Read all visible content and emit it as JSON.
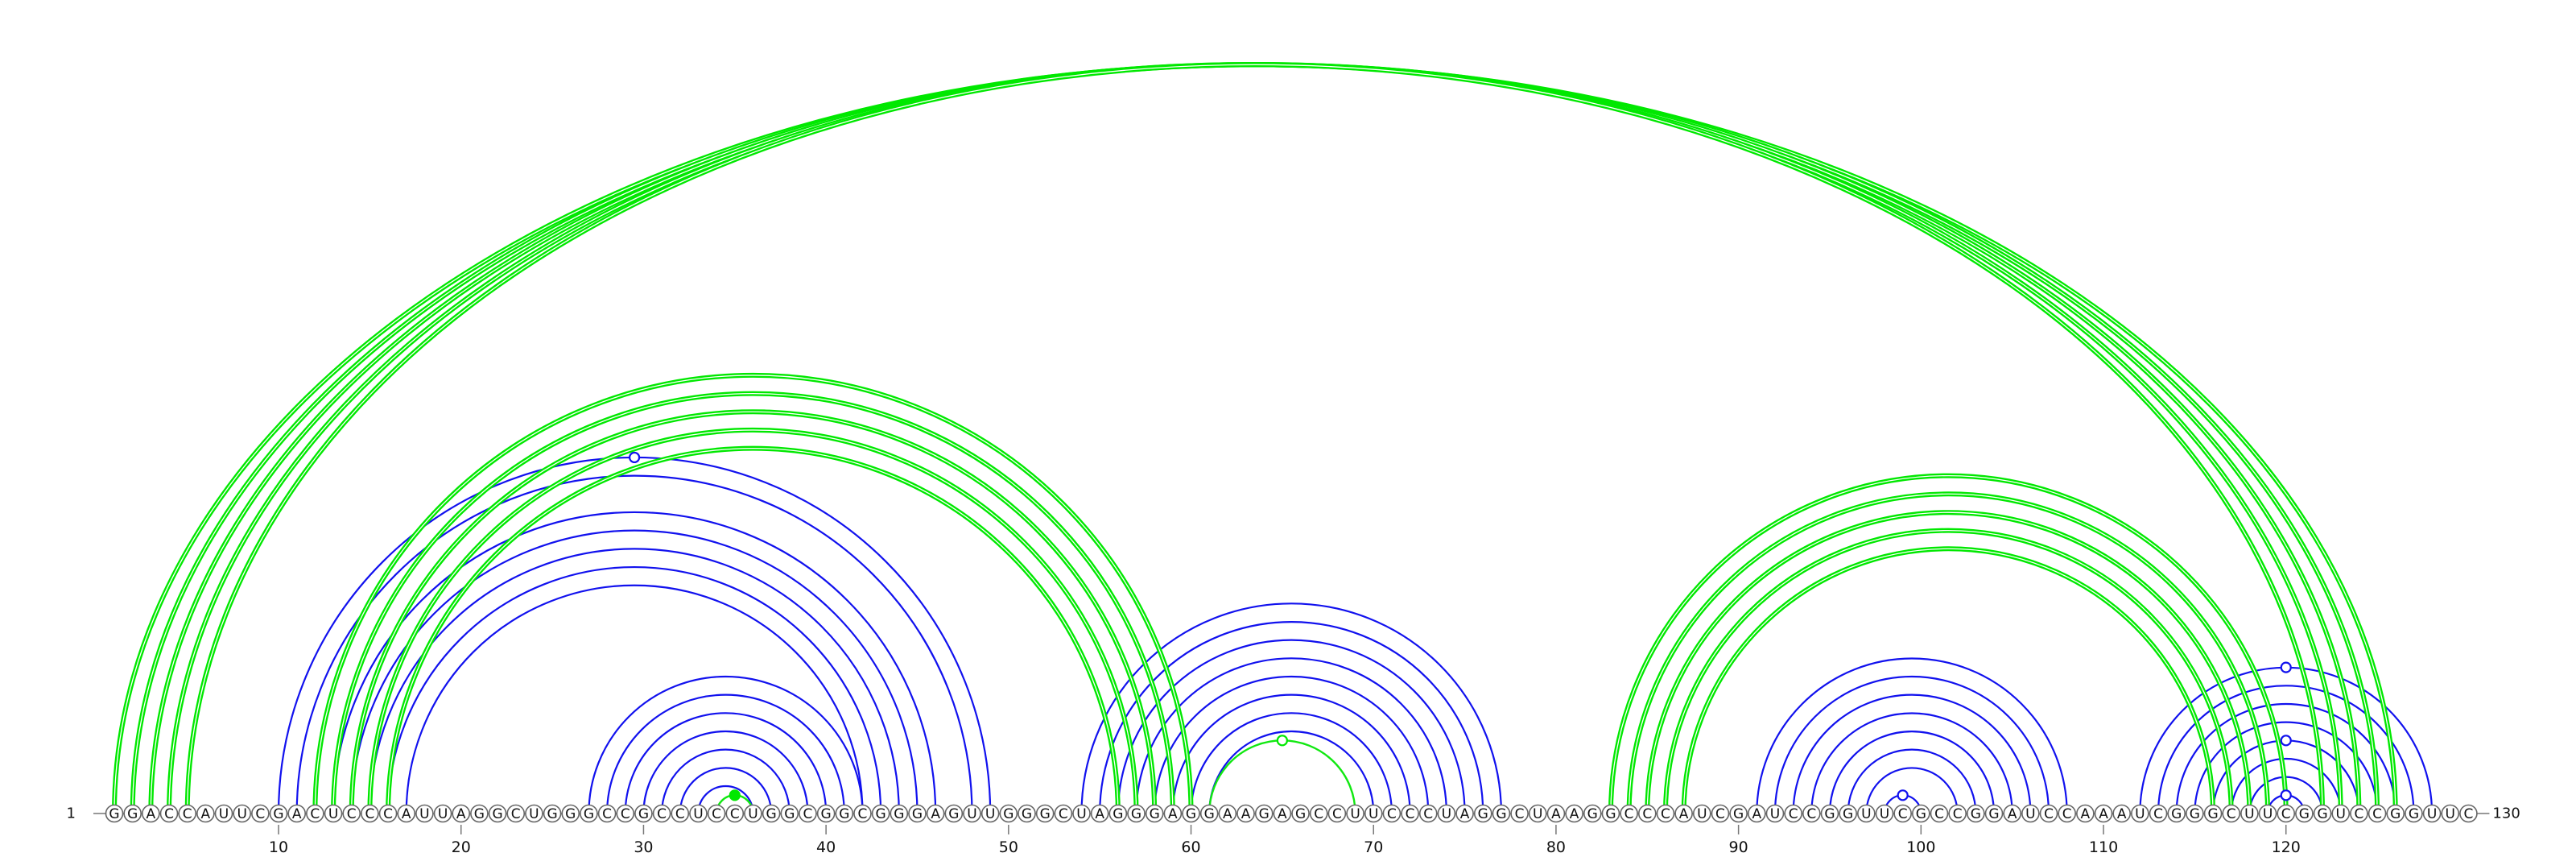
{
  "sequence": "GGACCAUUCGACUCCCAUUAGGCUGGGCCGCCUCCUGGCGGCGGGAGUUGGGCUAGGGAGGAAGAGCCUUCCCUAGGCUAAGGCCCAUCGAUCCGGUUCGCCGGAUCCAAAUCGGGCUUCGGUCCGGUUC",
  "start_label": "1",
  "end_label": "130",
  "ticks": [
    10,
    20,
    30,
    40,
    50,
    60,
    70,
    80,
    90,
    100,
    110,
    120
  ],
  "colors": {
    "blue": "#1111ee",
    "green": "#00e800",
    "marker_fill": "#ffffff"
  },
  "green_helices": [
    {
      "pairs": [
        [
          1,
          126
        ],
        [
          2,
          125
        ],
        [
          3,
          124
        ],
        [
          4,
          123
        ],
        [
          5,
          122
        ]
      ],
      "style": "double"
    },
    {
      "pairs": [
        [
          12,
          60
        ],
        [
          13,
          59
        ],
        [
          14,
          58
        ],
        [
          15,
          57
        ],
        [
          16,
          56
        ]
      ],
      "style": "double"
    },
    {
      "pairs": [
        [
          83,
          120
        ],
        [
          84,
          119
        ],
        [
          85,
          118
        ],
        [
          86,
          117
        ],
        [
          87,
          116
        ]
      ],
      "style": "double"
    },
    {
      "pairs": [
        [
          61,
          69
        ]
      ],
      "style": "thin"
    },
    {
      "pairs": [
        [
          34,
          36
        ]
      ],
      "style": "thin"
    }
  ],
  "blue_helices": [
    [
      [
        10,
        49
      ],
      [
        11,
        48
      ],
      [
        13,
        46
      ],
      [
        14,
        45
      ],
      [
        15,
        44
      ],
      [
        16,
        43
      ],
      [
        17,
        42
      ]
    ],
    [
      [
        27,
        42
      ],
      [
        28,
        41
      ],
      [
        29,
        40
      ],
      [
        30,
        39
      ],
      [
        31,
        38
      ],
      [
        32,
        37
      ],
      [
        33,
        36
      ]
    ],
    [
      [
        54,
        77
      ],
      [
        55,
        76
      ],
      [
        56,
        75
      ],
      [
        57,
        74
      ],
      [
        58,
        73
      ],
      [
        59,
        72
      ],
      [
        60,
        71
      ],
      [
        61,
        70
      ]
    ],
    [
      [
        91,
        108
      ],
      [
        92,
        107
      ],
      [
        93,
        106
      ],
      [
        94,
        105
      ],
      [
        95,
        104
      ],
      [
        96,
        103
      ],
      [
        97,
        102
      ],
      [
        98,
        100
      ]
    ],
    [
      [
        112,
        128
      ],
      [
        113,
        127
      ],
      [
        114,
        126
      ],
      [
        115,
        125
      ],
      [
        116,
        124
      ],
      [
        117,
        123
      ],
      [
        118,
        122
      ],
      [
        119,
        121
      ]
    ]
  ],
  "markers": [
    {
      "i": 10,
      "j": 49,
      "color": "blue",
      "filled": false
    },
    {
      "i": 61,
      "j": 69,
      "color": "green",
      "filled": false
    },
    {
      "i": 34,
      "j": 36,
      "color": "green",
      "filled": true
    },
    {
      "i": 98,
      "j": 100,
      "color": "blue",
      "filled": false
    },
    {
      "i": 112,
      "j": 128,
      "color": "blue",
      "filled": false
    },
    {
      "i": 116,
      "j": 124,
      "color": "blue",
      "filled": false
    },
    {
      "i": 119,
      "j": 121,
      "color": "blue",
      "filled": false
    }
  ]
}
